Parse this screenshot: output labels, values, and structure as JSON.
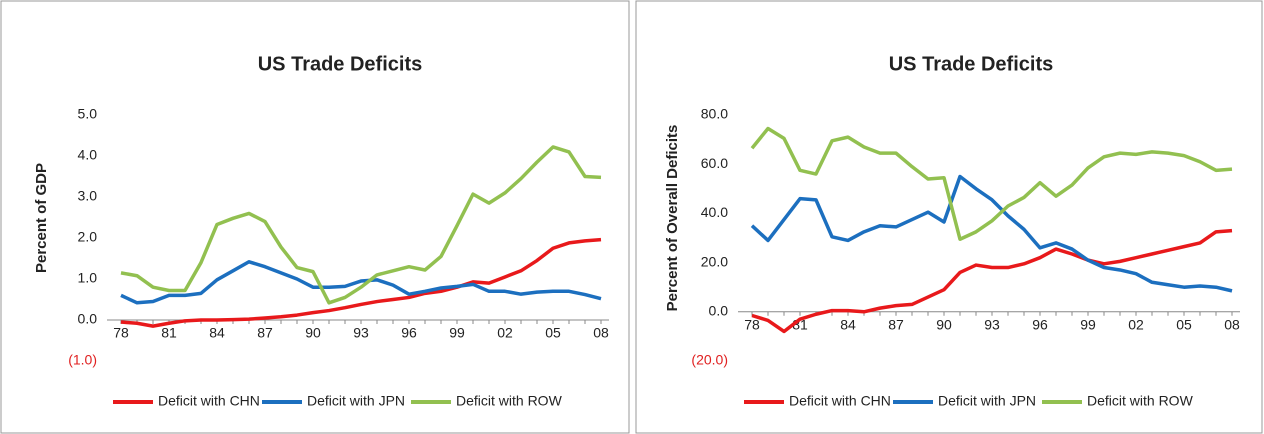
{
  "chart_data": [
    {
      "type": "line",
      "title": "US Trade Deficits",
      "ylabel": "Percent of GDP",
      "categories": [
        "78",
        null,
        null,
        "81",
        null,
        null,
        "84",
        null,
        null,
        "87",
        null,
        null,
        "90",
        null,
        null,
        "93",
        null,
        null,
        "96",
        null,
        null,
        "99",
        null,
        null,
        "02",
        null,
        null,
        "05",
        null,
        null,
        "08"
      ],
      "series": [
        {
          "name": "Deficit with CHN",
          "color": "#e8191b",
          "values": [
            -0.05,
            -0.08,
            -0.15,
            -0.08,
            -0.02,
            0.0,
            0.0,
            0.01,
            0.02,
            0.05,
            0.08,
            0.12,
            0.18,
            0.23,
            0.3,
            0.38,
            0.45,
            0.5,
            0.55,
            0.65,
            0.7,
            0.8,
            0.93,
            0.9,
            1.05,
            1.2,
            1.45,
            1.75,
            1.88,
            1.93,
            1.96
          ]
        },
        {
          "name": "Deficit with JPN",
          "color": "#1c6fbf",
          "values": [
            0.6,
            0.42,
            0.45,
            0.6,
            0.6,
            0.65,
            0.98,
            1.2,
            1.42,
            1.3,
            1.15,
            1.0,
            0.8,
            0.8,
            0.82,
            0.95,
            0.98,
            0.85,
            0.63,
            0.7,
            0.78,
            0.82,
            0.87,
            0.7,
            0.7,
            0.63,
            0.68,
            0.7,
            0.7,
            0.62,
            0.52
          ]
        },
        {
          "name": "Deficit with ROW",
          "color": "#92c050",
          "values": [
            1.15,
            1.08,
            0.8,
            0.72,
            0.72,
            1.4,
            2.33,
            2.48,
            2.6,
            2.4,
            1.78,
            1.28,
            1.18,
            0.42,
            0.55,
            0.8,
            1.1,
            1.2,
            1.3,
            1.22,
            1.55,
            2.3,
            3.07,
            2.85,
            3.1,
            3.45,
            3.85,
            4.22,
            4.1,
            3.5,
            3.48
          ]
        }
      ],
      "ylim": [
        -1,
        5
      ],
      "yticks": [
        {
          "value": -1,
          "label": "(1.0)"
        },
        {
          "value": 0,
          "label": "0.0"
        },
        {
          "value": 1,
          "label": "1.0"
        },
        {
          "value": 2,
          "label": "2.0"
        },
        {
          "value": 3,
          "label": "3.0"
        },
        {
          "value": 4,
          "label": "4.0"
        },
        {
          "value": 5,
          "label": "5.0"
        }
      ],
      "legend": "bottom"
    },
    {
      "type": "line",
      "title": "US Trade Deficits",
      "ylabel": "Percent of Overall Deficits",
      "categories": [
        "78",
        null,
        null,
        "81",
        null,
        null,
        "84",
        null,
        null,
        "87",
        null,
        null,
        "90",
        null,
        null,
        "93",
        null,
        null,
        "96",
        null,
        null,
        "99",
        null,
        null,
        "02",
        null,
        null,
        "05",
        null,
        null,
        "08"
      ],
      "series": [
        {
          "name": "Deficit with CHN",
          "color": "#e8191b",
          "values": [
            -1.5,
            -3.5,
            -8,
            -3,
            -1,
            0.5,
            0.5,
            0,
            1.5,
            2.5,
            3,
            6,
            9,
            16,
            19,
            18,
            18,
            19.5,
            22,
            25.5,
            23.5,
            21,
            19.5,
            20.5,
            22,
            23.5,
            25,
            26.5,
            28,
            32.5,
            33
          ]
        },
        {
          "name": "Deficit with JPN",
          "color": "#1c6fbf",
          "values": [
            35,
            29,
            37.5,
            46,
            45.5,
            30.5,
            29,
            32.5,
            35,
            34.5,
            37.5,
            40.5,
            36.5,
            55,
            50,
            45.5,
            39,
            33.5,
            26,
            28,
            25.5,
            21,
            18,
            17,
            15.5,
            12,
            11,
            10,
            10.5,
            10,
            8.5
          ]
        },
        {
          "name": "Deficit with ROW",
          "color": "#92c050",
          "values": [
            66.5,
            74.5,
            70.5,
            57.5,
            56,
            69.5,
            71,
            67,
            64.5,
            64.5,
            59,
            54,
            54.5,
            29.5,
            32.5,
            37,
            43,
            46.5,
            52.5,
            47,
            51.5,
            58.5,
            63,
            64.5,
            64,
            65,
            64.5,
            63.5,
            61,
            57.5,
            58
          ]
        }
      ],
      "ylim": [
        -20,
        80
      ],
      "yticks": [
        {
          "value": -20,
          "label": "(20.0)"
        },
        {
          "value": 0,
          "label": "0.0"
        },
        {
          "value": 20,
          "label": "20.0"
        },
        {
          "value": 40,
          "label": "40.0"
        },
        {
          "value": 60,
          "label": "60.0"
        },
        {
          "value": 80,
          "label": "80.0"
        }
      ],
      "legend": "bottom"
    }
  ]
}
